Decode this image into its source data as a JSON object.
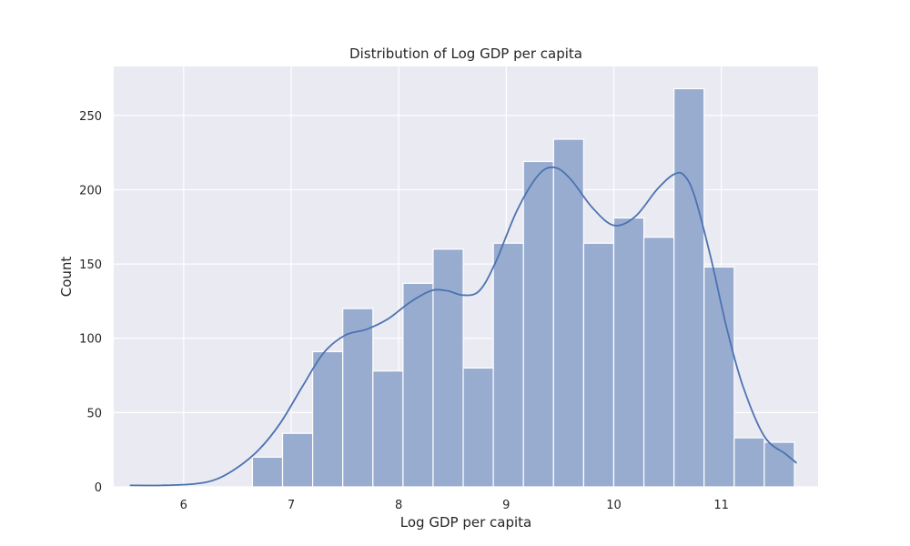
{
  "chart_data": {
    "type": "bar",
    "title": "Distribution of Log GDP per capita",
    "xlabel": "Log GDP per capita",
    "ylabel": "Count",
    "xlim": [
      5.35,
      11.9
    ],
    "ylim": [
      0,
      283
    ],
    "x_ticks": [
      "6",
      "7",
      "8",
      "9",
      "10",
      "11"
    ],
    "y_ticks": [
      "0",
      "50",
      "100",
      "150",
      "200",
      "250"
    ],
    "grid": true,
    "legend": "none",
    "colors": {
      "background": "#eaeaf2",
      "bar_fill": "#98acd0",
      "bar_edge": "#ffffff",
      "kde_line": "#4c72b0",
      "grid": "#ffffff"
    },
    "bins": {
      "edges": [
        6.64,
        6.92,
        7.2,
        7.48,
        7.76,
        8.04,
        8.32,
        8.6,
        8.88,
        9.16,
        9.44,
        9.72,
        10.0,
        10.28,
        10.56,
        10.84,
        11.12,
        11.4,
        11.68
      ],
      "counts": [
        20,
        36,
        91,
        120,
        78,
        137,
        160,
        80,
        164,
        219,
        234,
        164,
        181,
        168,
        268,
        148,
        33,
        30
      ]
    },
    "kde": {
      "x": [
        5.5,
        5.8,
        6.1,
        6.3,
        6.5,
        6.7,
        6.9,
        7.1,
        7.3,
        7.5,
        7.7,
        7.9,
        8.1,
        8.3,
        8.45,
        8.6,
        8.75,
        8.9,
        9.1,
        9.3,
        9.45,
        9.6,
        9.8,
        10.0,
        10.2,
        10.4,
        10.55,
        10.65,
        10.75,
        10.9,
        11.05,
        11.2,
        11.4,
        11.6,
        11.7
      ],
      "y": [
        1,
        1,
        2,
        5,
        13,
        25,
        43,
        67,
        90,
        102,
        106,
        113,
        124,
        132,
        132,
        129,
        132,
        151,
        186,
        210,
        215,
        207,
        188,
        176,
        182,
        200,
        210,
        210,
        196,
        155,
        107,
        68,
        34,
        22,
        16
      ]
    }
  }
}
